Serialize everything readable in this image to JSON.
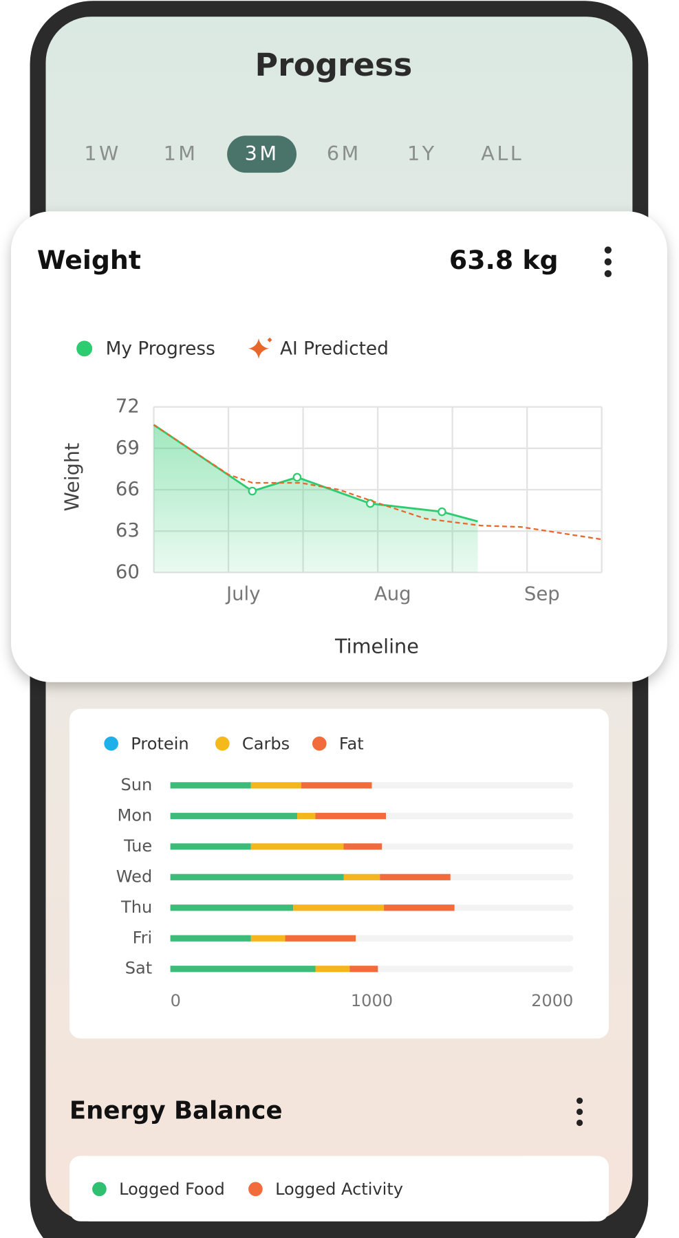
{
  "header": {
    "title": "Progress"
  },
  "tabs": {
    "items": [
      "1W",
      "1M",
      "3M",
      "6M",
      "1Y",
      "ALL"
    ],
    "selected": 2
  },
  "weight_card": {
    "title": "Weight",
    "current": "63.8 kg"
  },
  "energy_card": {
    "title": "Energy Balance",
    "legend": [
      {
        "name": "Logged Food",
        "color": "#2fbf71"
      },
      {
        "name": "Logged Activity",
        "color": "#f26b3a"
      }
    ]
  },
  "chart_data": [
    {
      "type": "line",
      "y_label": "Weight",
      "x_label": "Timeline",
      "xlim": [
        6.4,
        9.4
      ],
      "xticks": [
        {
          "value": 7,
          "label": "July"
        },
        {
          "value": 8,
          "label": "Aug"
        },
        {
          "value": 9,
          "label": "Sep"
        }
      ],
      "xgrid": [
        6.4,
        6.9,
        7.4,
        7.9,
        8.4,
        8.9,
        9.4
      ],
      "ylim": [
        60,
        72
      ],
      "yticks": [
        60,
        63,
        66,
        69,
        72
      ],
      "grid": true,
      "series": [
        {
          "name": "My Progress",
          "color": "#2ecc71",
          "style": "solid",
          "area": true,
          "x": [
            6.4,
            7.06,
            7.36,
            7.85,
            8.33,
            8.57
          ],
          "values": [
            70.7,
            65.9,
            66.9,
            65.0,
            64.4,
            63.7
          ]
        },
        {
          "name": "AI Predicted",
          "color": "#e8672a",
          "style": "dashed",
          "x": [
            6.4,
            6.9,
            7.06,
            7.38,
            7.64,
            7.91,
            8.22,
            8.59,
            8.86,
            9.4
          ],
          "values": [
            70.7,
            67.1,
            66.5,
            66.5,
            66.0,
            65.0,
            63.9,
            63.4,
            63.3,
            62.4
          ]
        }
      ]
    },
    {
      "type": "bar",
      "orientation": "horizontal",
      "stacked": true,
      "categories": [
        "Sun",
        "Mon",
        "Tue",
        "Wed",
        "Thu",
        "Fri",
        "Sat"
      ],
      "xlim": [
        0,
        2000
      ],
      "xticks": [
        0,
        1000,
        2000
      ],
      "series": [
        {
          "name": "Protein",
          "legend_color": "#1eb0e8",
          "color": "#3dbb78",
          "values": [
            400,
            630,
            400,
            860,
            610,
            400,
            720
          ]
        },
        {
          "name": "Carbs",
          "legend_color": "#f6b91c",
          "color": "#f4b51e",
          "values": [
            250,
            90,
            460,
            180,
            450,
            170,
            170
          ]
        },
        {
          "name": "Fat",
          "legend_color": "#f26b3a",
          "color": "#f26b3a",
          "values": [
            350,
            350,
            190,
            350,
            350,
            350,
            140
          ]
        }
      ]
    }
  ]
}
